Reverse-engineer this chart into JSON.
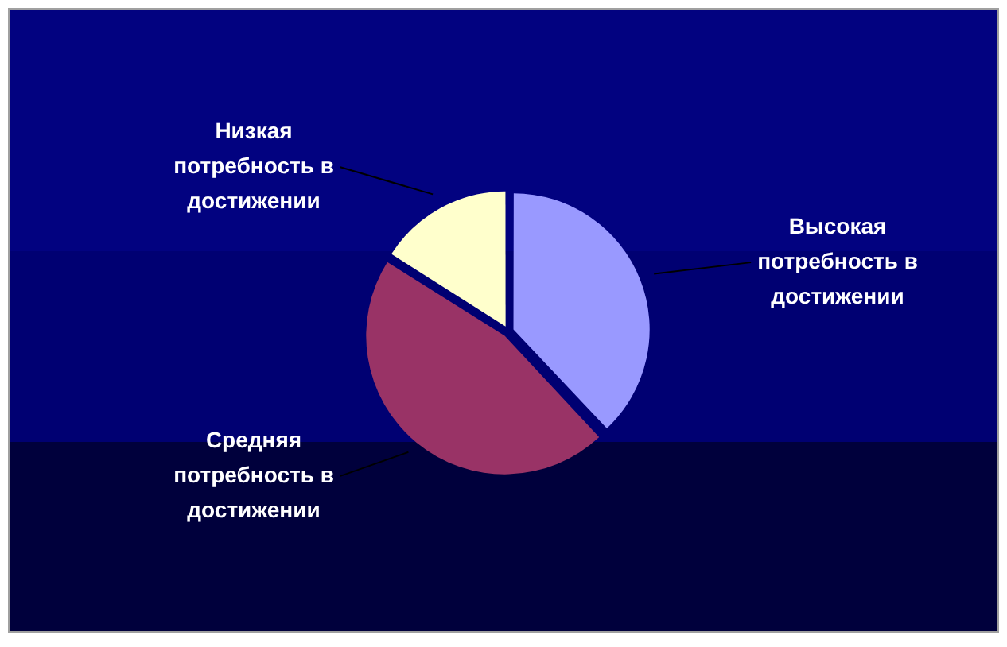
{
  "chart_data": {
    "type": "pie",
    "categories": [
      "Высокая потребность в достижении",
      "Средняя потребность в достижении",
      "Низкая потребность в достижении"
    ],
    "values": [
      38,
      46,
      16
    ],
    "colors": [
      "#9999ff",
      "#993366",
      "#ffffcc"
    ]
  }
}
